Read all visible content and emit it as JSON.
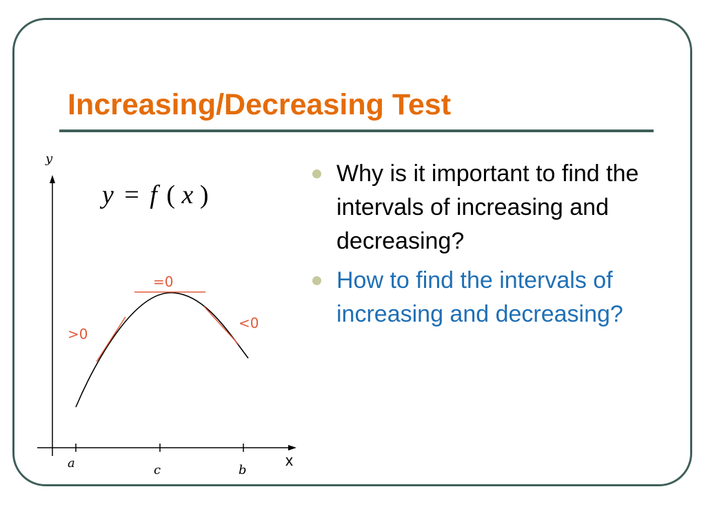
{
  "slide": {
    "title": "Increasing/Decreasing Test",
    "bullets": [
      {
        "text": "Why is it important to find the intervals of increasing and decreasing?",
        "color": "#000000"
      },
      {
        "text": "How to find the intervals of increasing and decreasing?",
        "color": "#1f6fb5"
      }
    ]
  },
  "graph": {
    "y_axis_label": "y",
    "x_axis_label": "x",
    "equation": {
      "lhs": "y",
      "eq": "=",
      "fn": "f",
      "lp": "(",
      "var": "x",
      "rp": ")"
    },
    "tick_labels": {
      "a": "a",
      "c": "c",
      "b": "b"
    },
    "slope_labels": {
      "positive": ">0",
      "zero": "=0",
      "negative": "<0"
    }
  },
  "colors": {
    "title": "#e46c0a",
    "frame": "#3f5f5a",
    "bullet_dot": "#c6c99c",
    "slope": "#e05a3a",
    "curve": "#000000"
  }
}
